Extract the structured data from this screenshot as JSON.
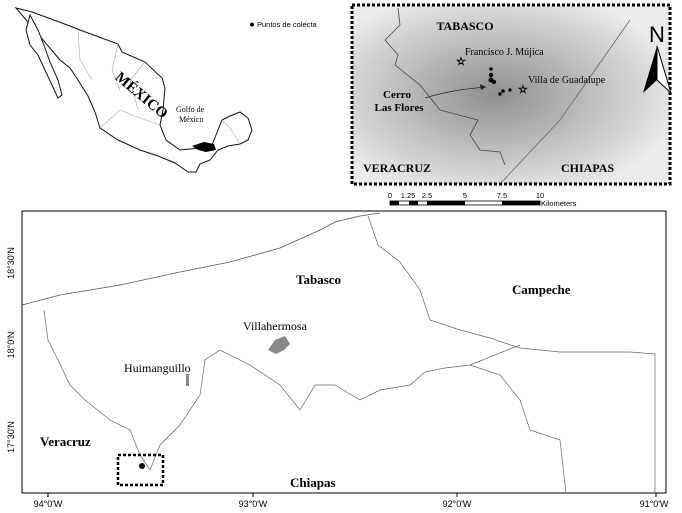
{
  "overview_map": {
    "country_label": "MÉXICO",
    "gulf_label_line1": "Golfo de",
    "gulf_label_line2": "México",
    "legend_label": "Puntos de colecta"
  },
  "inset_map": {
    "state_labels": [
      "TABASCO",
      "VERACRUZ",
      "CHIAPAS"
    ],
    "towns": [
      "Francisco J. Mújica",
      "Villa de Guadalupe"
    ],
    "site_label_line1": "Cerro",
    "site_label_line2": "Las Flores"
  },
  "scale_bar": {
    "ticks": [
      "0",
      "1.25",
      "2.5",
      "5",
      "7.5",
      "10"
    ],
    "unit": "Kilometers"
  },
  "north_arrow": {
    "label": "N"
  },
  "main_map": {
    "labels": {
      "tabasco": "Tabasco",
      "campeche": "Campeche",
      "villahermosa": "Villahermosa",
      "huimanguillo": "Huimanguillo",
      "veracruz": "Veracruz",
      "chiapas": "Chiapas"
    },
    "lon_ticks": [
      "94°0'W",
      "93°0'W",
      "92°0'W",
      "91°0'W"
    ],
    "lat_ticks": [
      "18°30'N",
      "18°0'N",
      "17°30'N"
    ]
  },
  "colors": {
    "frame": "#000000",
    "boundary": "#888888",
    "urban": "#888888",
    "relief_dark": "#9a9a9a",
    "relief_light": "#e8e8e8"
  }
}
